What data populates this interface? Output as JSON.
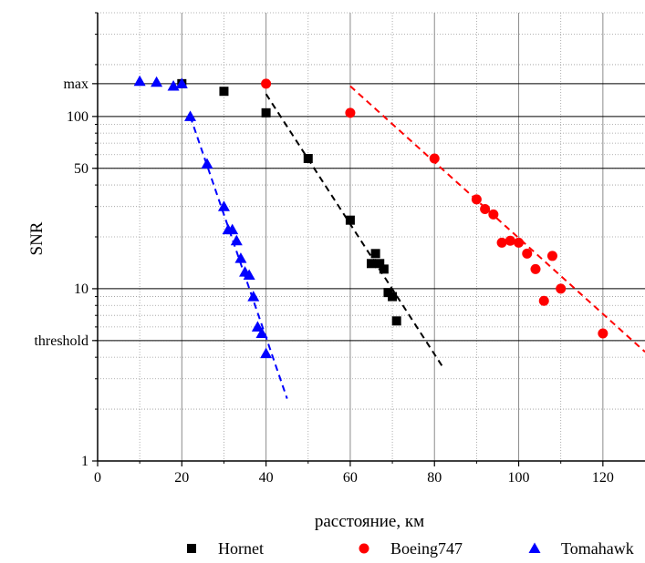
{
  "chart_data": {
    "type": "scatter",
    "title": "",
    "xlabel": "расстояние, км",
    "ylabel": "SNR",
    "xlim": [
      0,
      130
    ],
    "ylim": [
      1,
      400
    ],
    "y_scale": "log",
    "x_ticks": [
      0,
      20,
      40,
      60,
      80,
      100,
      120
    ],
    "x_tick_labels": [
      "0",
      "20",
      "40",
      "60",
      "80",
      "100",
      "120"
    ],
    "y_ticks": [
      1,
      5,
      10,
      50,
      100,
      155
    ],
    "y_tick_labels": [
      "1",
      "threshold",
      "10",
      "50",
      "100",
      "max"
    ],
    "grid": true,
    "legend_position": "bottom",
    "series": [
      {
        "name": "Hornet",
        "color": "#000000",
        "marker": "square",
        "x": [
          20,
          30,
          40,
          50,
          60,
          65,
          66,
          67,
          68,
          69,
          70,
          71
        ],
        "y": [
          155,
          140,
          105,
          57,
          25,
          14,
          16,
          14,
          13,
          9.5,
          9,
          6.5
        ],
        "trend": {
          "x": [
            40,
            82
          ],
          "y": [
            135,
            3.5
          ]
        }
      },
      {
        "name": "Boeing747",
        "color": "#ff0000",
        "marker": "circle",
        "x": [
          40,
          60,
          80,
          90,
          92,
          94,
          96,
          98,
          100,
          102,
          104,
          106,
          108,
          110,
          120
        ],
        "y": [
          155,
          105,
          57,
          33,
          29,
          27,
          18.5,
          19,
          18.5,
          16,
          13,
          8.5,
          15.5,
          10,
          5.5
        ],
        "trend": {
          "x": [
            60,
            130
          ],
          "y": [
            150,
            4.3
          ]
        }
      },
      {
        "name": "Tomahawk",
        "color": "#0000ff",
        "marker": "triangle",
        "x": [
          10,
          14,
          18,
          20,
          22,
          26,
          30,
          31,
          32,
          33,
          34,
          35,
          36,
          37,
          38,
          39,
          40
        ],
        "y": [
          160,
          158,
          150,
          155,
          100,
          53,
          30,
          22,
          22,
          19,
          15,
          12.5,
          12,
          9,
          6,
          5.5,
          4.2
        ],
        "trend": {
          "x": [
            22,
            45
          ],
          "y": [
            100,
            2.3
          ]
        }
      }
    ]
  }
}
